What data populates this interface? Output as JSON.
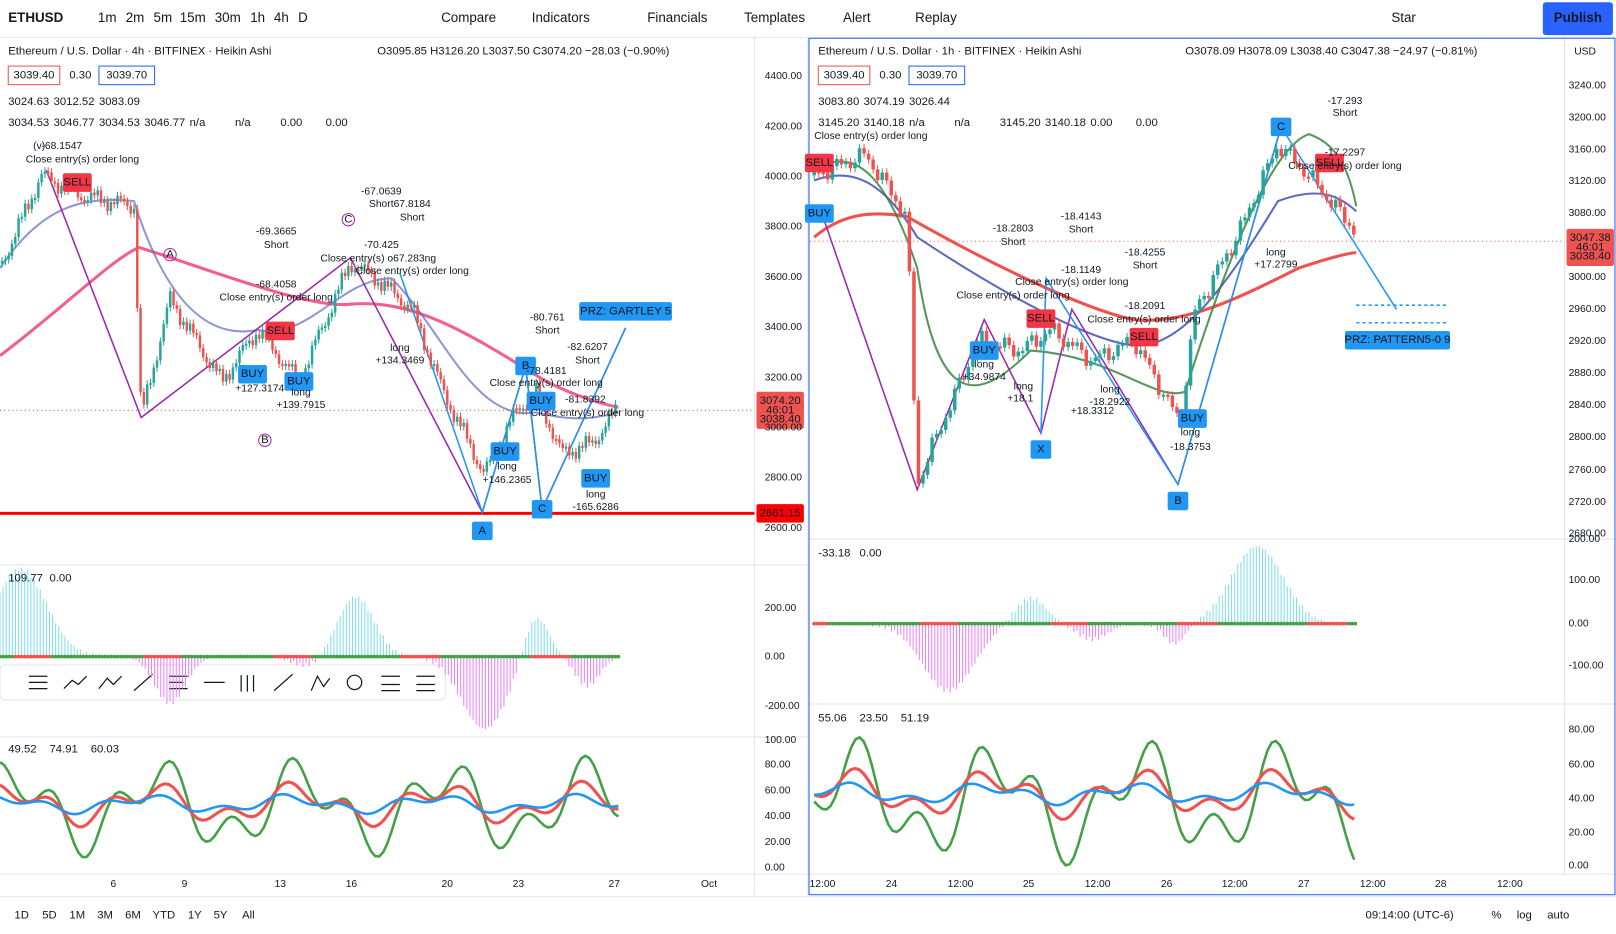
{
  "toolbar": {
    "symbol": "ETHUSD",
    "intervals": [
      "1m",
      "2m",
      "5m",
      "15m",
      "30m",
      "1h",
      "4h",
      "D"
    ],
    "buttons": [
      "Compare",
      "Indicators",
      "Financials",
      "Templates",
      "Alert",
      "Replay"
    ],
    "star": "Star",
    "publish": "Publish"
  },
  "left": {
    "title": "Ethereum / U.S. Dollar · 4h · BITFINEX · Heikin Ashi",
    "ohlc": "O3095.85 H3126.20 L3037.50 C3074.20 −28.03 (−0.90%)",
    "bid": "3039.40",
    "spread": "0.30",
    "ask": "3039.70",
    "rows": [
      [
        {
          "text": "3024.63",
          "color": "#9c27b0"
        },
        {
          "text": "3012.52",
          "color": "#2962ff"
        },
        {
          "text": "3083.09",
          "color": "#e91e63"
        }
      ],
      [
        {
          "text": "3034.53",
          "color": "#388e3c"
        },
        {
          "text": "3046.77",
          "color": "#f23645"
        },
        {
          "text": "3034.53",
          "color": "#2962ff"
        },
        {
          "text": "3046.77",
          "color": "#2962ff"
        },
        {
          "text": "n/a",
          "color": "#131722"
        },
        {
          "text": "n/a",
          "color": "#131722"
        },
        {
          "text": "0.00",
          "color": "#2962ff"
        },
        {
          "text": "0.00",
          "color": "#f23645"
        }
      ]
    ],
    "price_axis": [
      "4400.00",
      "4200.00",
      "4000.00",
      "3800.00",
      "3600.00",
      "3400.00",
      "3200.00",
      "3000.00",
      "2800.00",
      "2600.00"
    ],
    "osc1_axis": [
      "200.00",
      "0.00",
      "-200.00"
    ],
    "osc2_axis": [
      "100.00",
      "80.00",
      "60.00",
      "40.00",
      "20.00",
      "0.00"
    ],
    "time_axis": [
      "6",
      "9",
      "13",
      "16",
      "20",
      "23",
      "27",
      "Oct"
    ],
    "osc1_values": [
      {
        "text": "109.77",
        "color": "#26c6da"
      },
      {
        "text": "0.00",
        "color": "#388e3c"
      }
    ],
    "osc2_values": [
      {
        "text": "49.52",
        "color": "#2196f3"
      },
      {
        "text": "74.91",
        "color": "#43a047"
      },
      {
        "text": "60.03",
        "color": "#f23645"
      }
    ],
    "price_tag": [
      "3074.20",
      "46:01",
      "3038.40"
    ],
    "level_tag": "2661.15",
    "annotations": [
      "-68.1547",
      "Close entry(s) order long",
      "-67.0639",
      "Short67.8184",
      "Short",
      "-69.3665",
      "Short",
      "-70.425",
      "Close entry(s) o67.283ng",
      "Close entry(s) order long",
      "-68.4058",
      "Close entry(s) order long",
      "long",
      "+134.3469",
      "long",
      "+139.7915",
      "+127.3174",
      "-80.761",
      "Short",
      "-82.6207",
      "Short",
      "-78.4181",
      "Close entry(s) order long",
      "-81.8392",
      "Close entry(s) order long",
      "long",
      "+146.2365",
      "long",
      "-165.6286",
      "(v)"
    ],
    "signals": [
      "SELL",
      "BUY",
      "BUY",
      "SELL",
      "BUY",
      "BUY",
      "BUY"
    ],
    "pattern_labels": [
      "A",
      "B",
      "C"
    ],
    "circled": [
      "A",
      "B",
      "C"
    ],
    "prz": "PRZ: GARTLEY 5"
  },
  "right": {
    "title": "Ethereum / U.S. Dollar · 1h · BITFINEX · Heikin Ashi",
    "ohlc": "O3078.09 H3078.09 L3038.40 C3047.38 −24.97 (−0.81%)",
    "bid": "3039.40",
    "spread": "0.30",
    "ask": "3039.70",
    "currency": "USD",
    "rows": [
      [
        {
          "text": "3083.80",
          "color": "#9c27b0"
        },
        {
          "text": "3074.19",
          "color": "#2962ff"
        },
        {
          "text": "3026.44",
          "color": "#e91e63"
        }
      ],
      [
        {
          "text": "3145.20",
          "color": "#388e3c"
        },
        {
          "text": "3140.18",
          "color": "#f23645"
        },
        {
          "text": "n/a",
          "color": "#131722"
        },
        {
          "text": "n/a",
          "color": "#131722"
        },
        {
          "text": "3145.20",
          "color": "#2962ff"
        },
        {
          "text": "3140.18",
          "color": "#2962ff"
        },
        {
          "text": "0.00",
          "color": "#2962ff"
        },
        {
          "text": "0.00",
          "color": "#f23645"
        }
      ]
    ],
    "price_axis": [
      "3240.00",
      "3200.00",
      "3160.00",
      "3120.00",
      "3080.00",
      "3000.00",
      "2960.00",
      "2920.00",
      "2880.00",
      "2840.00",
      "2800.00",
      "2760.00",
      "2720.00",
      "2680.00"
    ],
    "osc1_axis": [
      "200.00",
      "100.00",
      "0.00",
      "-100.00"
    ],
    "osc2_axis": [
      "80.00",
      "60.00",
      "40.00",
      "20.00",
      "0.00"
    ],
    "time_axis": [
      "12:00",
      "24",
      "12:00",
      "25",
      "12:00",
      "26",
      "12:00",
      "27",
      "12:00",
      "28",
      "12:00"
    ],
    "osc1_values": [
      {
        "text": "-33.18",
        "color": "#e040fb"
      },
      {
        "text": "0.00",
        "color": "#388e3c"
      }
    ],
    "osc2_values": [
      {
        "text": "55.06",
        "color": "#2196f3"
      },
      {
        "text": "23.50",
        "color": "#43a047"
      },
      {
        "text": "51.19",
        "color": "#f23645"
      }
    ],
    "price_tag": [
      "3047.38",
      "46:01",
      "3038.40"
    ],
    "annotations": [
      "-17.293",
      "Short",
      "-17.2297",
      "Close entry(s) order long",
      "Close entry(s) order long",
      "-18.2803",
      "Short",
      "-18.4143",
      "Short",
      "-18.1149",
      "-18.4255",
      "Short",
      "Close entry(s) order long",
      "Close entry(s) order long",
      "-18.2091",
      "Close entry(s) order long",
      "long",
      "+34.9874",
      "long",
      "+18.1",
      "long",
      "-18.2922",
      "+18.3312",
      "long",
      "-18.3753",
      "long",
      "+17.2799"
    ],
    "signals": [
      "SELL",
      "BUY",
      "BUY",
      "SELL",
      "SELL",
      "BUY",
      "SELL"
    ],
    "pattern_labels": [
      "C",
      "X",
      "B"
    ],
    "prz": "PRZ: PATTERN5-0 9"
  },
  "bottom": {
    "ranges": [
      "1D",
      "5D",
      "1M",
      "3M",
      "6M",
      "YTD",
      "1Y",
      "5Y",
      "All"
    ],
    "time": "09:14:00 (UTC-6)",
    "options": [
      "%",
      "log",
      "auto"
    ]
  }
}
